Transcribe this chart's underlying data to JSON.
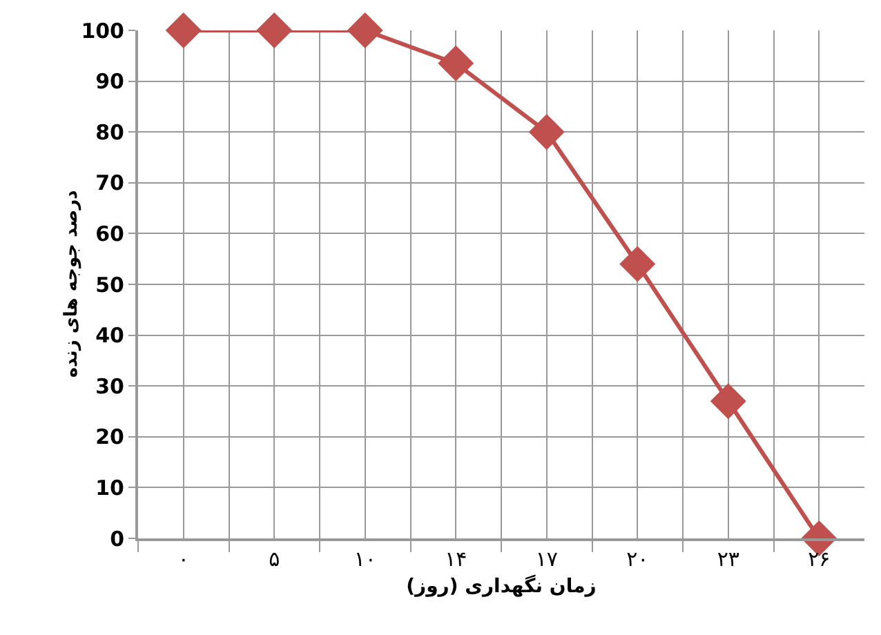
{
  "chart_data": {
    "type": "line",
    "xlabel": "زمان نگهداری (روز)",
    "ylabel": "درصد جوجه های زنده",
    "categories": [
      "۰",
      "۵",
      "۱۰",
      "۱۴",
      "۱۷",
      "۲۰",
      "۲۳",
      "۲۶"
    ],
    "series": [
      {
        "color": "#c0504d",
        "values": [
          100,
          100,
          100,
          93.5,
          80,
          54,
          27,
          0
        ]
      }
    ],
    "ylim": [
      0,
      100
    ],
    "yticks": [
      0,
      10,
      20,
      30,
      40,
      50,
      60,
      70,
      80,
      90,
      100
    ],
    "grid": true,
    "marker": "diamond",
    "line_style": "solid",
    "legend": false
  }
}
